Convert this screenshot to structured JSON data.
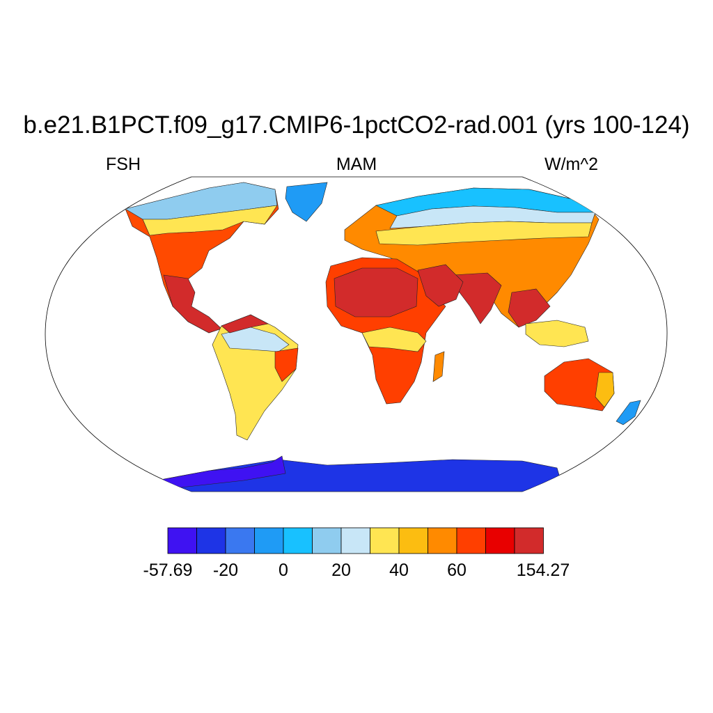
{
  "title": "b.e21.B1PCT.f09_g17.CMIP6-1pctCO2-rad.001 (yrs 100-124)",
  "left_string": "FSH",
  "center_string": "MAM",
  "right_string": "W/m^2",
  "map": {
    "projection": "robinson",
    "variable": "FSH",
    "season": "MAM",
    "units": "W/m^2",
    "ocean_fill": "none (white)",
    "coastlines": true
  },
  "colorbar": {
    "colors": [
      "#3f12f2",
      "#1e34e6",
      "#3a78f0",
      "#1f9bf5",
      "#18c1ff",
      "#8fccef",
      "#c8e6f7",
      "#ffe552",
      "#fcbd11",
      "#ff8a00",
      "#ff3f00",
      "#e80000",
      "#d22b2b"
    ],
    "tick_labels": [
      "-57.69",
      "-20",
      "0",
      "20",
      "40",
      "60",
      "154.27"
    ],
    "tick_edge_index": [
      0,
      2,
      4,
      6,
      8,
      10,
      13
    ]
  },
  "chart_data": {
    "type": "heatmap",
    "title": "b.e21.B1PCT.f09_g17.CMIP6-1pctCO2-rad.001 (yrs 100-124)",
    "variable": "FSH",
    "season": "MAM",
    "units": "W/m^2",
    "projection": "robinson",
    "data_range": [
      -57.69,
      154.27
    ],
    "contour_levels": [
      -20,
      -10,
      0,
      10,
      20,
      30,
      40,
      50,
      60,
      70,
      80,
      90
    ],
    "colors": [
      "#3f12f2",
      "#1e34e6",
      "#3a78f0",
      "#1f9bf5",
      "#18c1ff",
      "#8fccef",
      "#c8e6f7",
      "#ffe552",
      "#fcbd11",
      "#ff8a00",
      "#ff3f00",
      "#e80000",
      "#d22b2b"
    ],
    "colorbar_tick_labels": [
      "-57.69",
      "-20",
      "0",
      "20",
      "40",
      "60",
      "154.27"
    ]
  }
}
